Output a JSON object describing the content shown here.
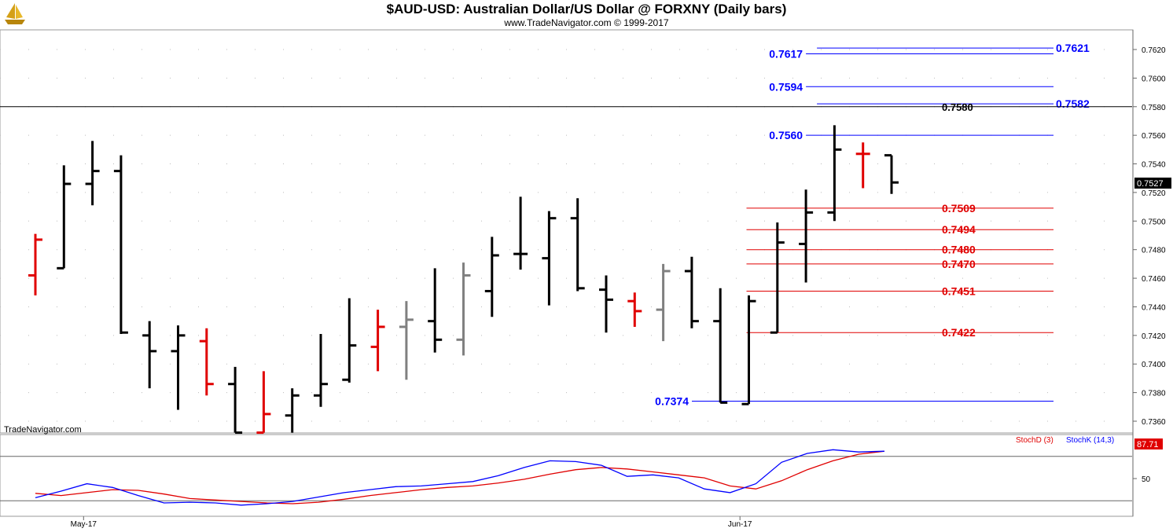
{
  "header": {
    "title": "$AUD-USD:  Australian Dollar/US Dollar @ FORXNY  (Daily bars)",
    "subtitle": "www.TradeNavigator.com © 1999-2017",
    "watermark": "TradeNavigator.com",
    "logo_icon": "gold-ship-logo-icon"
  },
  "colors": {
    "up_bar": "#000000",
    "down_bar": "#e00000",
    "inside_bar": "#808080",
    "support": "#e00000",
    "resistance": "#0000ff",
    "stoch_d": "#e00000",
    "stoch_k": "#0000ff"
  },
  "chart_data": [
    {
      "type": "ohlc",
      "title": "$AUD-USD:  Australian Dollar/US Dollar @ FORXNY  (Daily bars)",
      "y_axis_position": "right",
      "ylim": [
        0.735,
        0.7635
      ],
      "y_ticks": [
        "0.7360",
        "0.7380",
        "0.7400",
        "0.7420",
        "0.7440",
        "0.7460",
        "0.7480",
        "0.7500",
        "0.7520",
        "0.7540",
        "0.7560",
        "0.7580",
        "0.7600",
        "0.7620"
      ],
      "x_labels": [
        {
          "label": "May-17",
          "bar": 1
        },
        {
          "label": "Jun-17",
          "bar": 24
        }
      ],
      "last_price": "0.7527",
      "grid": "dotted",
      "bars": [
        {
          "o": 0.7462,
          "h": 0.7491,
          "l": 0.7448,
          "c": 0.7487,
          "color": "red"
        },
        {
          "o": 0.7467,
          "h": 0.7539,
          "l": 0.7467,
          "c": 0.7526,
          "color": "black"
        },
        {
          "o": 0.7526,
          "h": 0.7556,
          "l": 0.7511,
          "c": 0.7535,
          "color": "black"
        },
        {
          "o": 0.7535,
          "h": 0.7546,
          "l": 0.7421,
          "c": 0.7422,
          "color": "black"
        },
        {
          "o": 0.742,
          "h": 0.743,
          "l": 0.7383,
          "c": 0.7409,
          "color": "black"
        },
        {
          "o": 0.7409,
          "h": 0.7427,
          "l": 0.7368,
          "c": 0.742,
          "color": "black"
        },
        {
          "o": 0.7416,
          "h": 0.7425,
          "l": 0.7378,
          "c": 0.7386,
          "color": "red"
        },
        {
          "o": 0.7386,
          "h": 0.7398,
          "l": 0.7352,
          "c": 0.7352,
          "color": "black"
        },
        {
          "o": 0.7352,
          "h": 0.7395,
          "l": 0.7352,
          "c": 0.7365,
          "color": "red"
        },
        {
          "o": 0.7364,
          "h": 0.7383,
          "l": 0.7352,
          "c": 0.7378,
          "color": "black"
        },
        {
          "o": 0.7378,
          "h": 0.7421,
          "l": 0.737,
          "c": 0.7386,
          "color": "black"
        },
        {
          "o": 0.7389,
          "h": 0.7446,
          "l": 0.7387,
          "c": 0.7413,
          "color": "black"
        },
        {
          "o": 0.7412,
          "h": 0.7438,
          "l": 0.7395,
          "c": 0.7426,
          "color": "red"
        },
        {
          "o": 0.7426,
          "h": 0.7444,
          "l": 0.7389,
          "c": 0.7431,
          "color": "gray"
        },
        {
          "o": 0.743,
          "h": 0.7467,
          "l": 0.7408,
          "c": 0.7417,
          "color": "black"
        },
        {
          "o": 0.7417,
          "h": 0.7471,
          "l": 0.7406,
          "c": 0.7462,
          "color": "gray"
        },
        {
          "o": 0.7451,
          "h": 0.7489,
          "l": 0.7433,
          "c": 0.7476,
          "color": "black"
        },
        {
          "o": 0.7477,
          "h": 0.7517,
          "l": 0.7466,
          "c": 0.7477,
          "color": "black"
        },
        {
          "o": 0.7474,
          "h": 0.7507,
          "l": 0.7441,
          "c": 0.7502,
          "color": "black"
        },
        {
          "o": 0.7502,
          "h": 0.7516,
          "l": 0.7451,
          "c": 0.7453,
          "color": "black"
        },
        {
          "o": 0.7452,
          "h": 0.7462,
          "l": 0.7422,
          "c": 0.7445,
          "color": "black"
        },
        {
          "o": 0.7444,
          "h": 0.745,
          "l": 0.7426,
          "c": 0.7437,
          "color": "red"
        },
        {
          "o": 0.7438,
          "h": 0.747,
          "l": 0.7416,
          "c": 0.7465,
          "color": "gray"
        },
        {
          "o": 0.7465,
          "h": 0.7475,
          "l": 0.7425,
          "c": 0.743,
          "color": "black"
        },
        {
          "o": 0.743,
          "h": 0.7453,
          "l": 0.7373,
          "c": 0.7373,
          "color": "black"
        },
        {
          "o": 0.7372,
          "h": 0.7448,
          "l": 0.7372,
          "c": 0.7444,
          "color": "black"
        },
        {
          "o": 0.7422,
          "h": 0.7499,
          "l": 0.7422,
          "c": 0.7485,
          "color": "black"
        },
        {
          "o": 0.7484,
          "h": 0.7522,
          "l": 0.7457,
          "c": 0.7506,
          "color": "black"
        },
        {
          "o": 0.7506,
          "h": 0.7567,
          "l": 0.75,
          "c": 0.755,
          "color": "black"
        },
        {
          "o": 0.7547,
          "h": 0.7555,
          "l": 0.7523,
          "c": 0.7547,
          "color": "red"
        },
        {
          "o": 0.7546,
          "h": 0.7546,
          "l": 0.7519,
          "c": 0.7527,
          "color": "black"
        }
      ],
      "levels": [
        {
          "value": 0.7621,
          "label": "0.7621",
          "kind": "resistance",
          "from_bar": 27,
          "label_side": "right"
        },
        {
          "value": 0.7617,
          "label": "0.7617",
          "kind": "resistance",
          "from_bar": 27,
          "label_side": "left"
        },
        {
          "value": 0.7594,
          "label": "0.7594",
          "kind": "resistance",
          "from_bar": 27,
          "label_side": "left"
        },
        {
          "value": 0.7582,
          "label": "0.7582",
          "kind": "resistance",
          "from_bar": 27,
          "label_side": "right"
        },
        {
          "value": 0.758,
          "label": "0.7580",
          "kind": "reference",
          "from_bar": 0,
          "label_side": "mid"
        },
        {
          "value": 0.756,
          "label": "0.7560",
          "kind": "resistance",
          "from_bar": 27,
          "label_side": "left"
        },
        {
          "value": 0.7509,
          "label": "0.7509",
          "kind": "support",
          "from_bar": 25,
          "label_side": "mid"
        },
        {
          "value": 0.7494,
          "label": "0.7494",
          "kind": "support",
          "from_bar": 25,
          "label_side": "mid"
        },
        {
          "value": 0.748,
          "label": "0.7480",
          "kind": "support",
          "from_bar": 25,
          "label_side": "mid"
        },
        {
          "value": 0.747,
          "label": "0.7470",
          "kind": "support",
          "from_bar": 25,
          "label_side": "mid"
        },
        {
          "value": 0.7451,
          "label": "0.7451",
          "kind": "support",
          "from_bar": 25,
          "label_side": "mid"
        },
        {
          "value": 0.7422,
          "label": "0.7422",
          "kind": "support",
          "from_bar": 25,
          "label_side": "mid"
        },
        {
          "value": 0.7374,
          "label": "0.7374",
          "kind": "resistance",
          "from_bar": 24,
          "label_side": "left"
        }
      ]
    },
    {
      "type": "line",
      "ylim": [
        0,
        100
      ],
      "y_ticks": [
        "50"
      ],
      "reference_lines": [
        80,
        20
      ],
      "last_value": "87.71",
      "legend": [
        "StochD (3)",
        "StochK (14,3)"
      ],
      "legend_position": "top-right",
      "series": [
        {
          "name": "StochD (3)",
          "color": "#e00000",
          "values": [
            30,
            27,
            31,
            35,
            34,
            29,
            23,
            21,
            19,
            17,
            16,
            18,
            22,
            27,
            31,
            35,
            38,
            40,
            44,
            49,
            56,
            62,
            65,
            63,
            59,
            55,
            51,
            40,
            36,
            47,
            62,
            74,
            83,
            87
          ]
        },
        {
          "name": "StochK (14,3)",
          "color": "#0000ff",
          "values": [
            24,
            33,
            43,
            38,
            27,
            17,
            18,
            17,
            14,
            16,
            19,
            25,
            31,
            35,
            39,
            40,
            43,
            46,
            54,
            65,
            74,
            73,
            68,
            53,
            55,
            51,
            36,
            31,
            43,
            72,
            84,
            89,
            86,
            87
          ]
        }
      ]
    }
  ]
}
